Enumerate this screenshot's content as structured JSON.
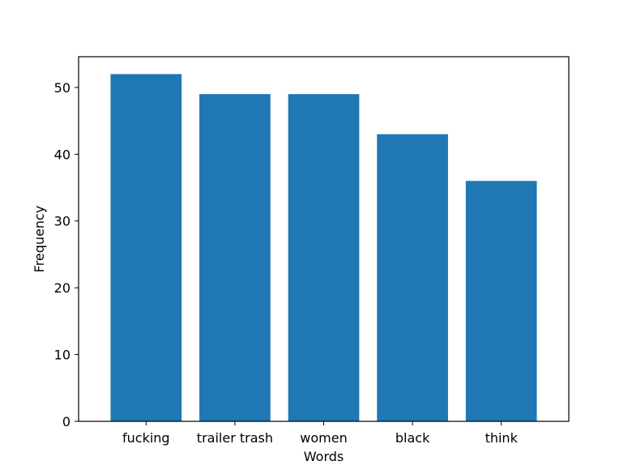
{
  "chart_data": {
    "type": "bar",
    "title": "",
    "xlabel": "Words",
    "ylabel": "Frequency",
    "categories": [
      "fucking",
      "trailer trash",
      "women",
      "black",
      "think"
    ],
    "values": [
      52,
      49,
      49,
      43,
      36
    ],
    "ylim": [
      0,
      54.6
    ],
    "yticks": [
      0,
      10,
      20,
      30,
      40,
      50
    ],
    "bar_color": "#1f77b4",
    "grid": false,
    "legend": "none"
  }
}
